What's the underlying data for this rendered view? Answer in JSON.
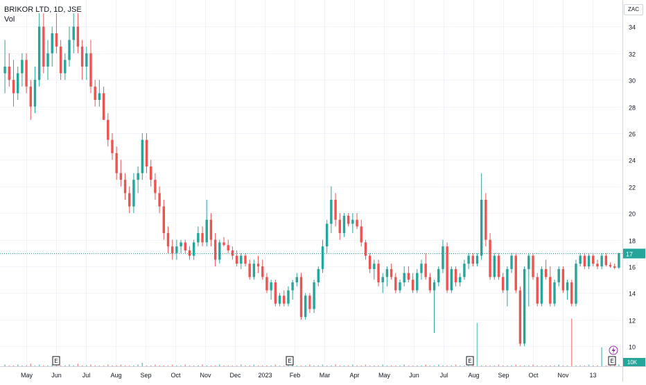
{
  "header": {
    "symbol": "BRIKOR LTD, 1D, JSE",
    "volume_label": "Vol",
    "currency": "ZAC"
  },
  "colors": {
    "up": "#26a69a",
    "down": "#ef5350",
    "grid": "#f0f3fa",
    "text": "#131722",
    "last_price_line": "#26a69a"
  },
  "icons": [
    "earnings-marker-icon",
    "dividend-lightning-icon"
  ],
  "chart_data": {
    "type": "candlestick",
    "ylim": [
      8.5,
      36
    ],
    "y_ticks": [
      10,
      12,
      14,
      16,
      18,
      20,
      22,
      24,
      26,
      28,
      30,
      32,
      34
    ],
    "x_ticks": [
      "May",
      "Jun",
      "Jul",
      "Aug",
      "Sep",
      "Oct",
      "Nov",
      "Dec",
      "2023",
      "Feb",
      "Mar",
      "Apr",
      "May",
      "Jun",
      "Jul",
      "Aug",
      "Sep",
      "Oct",
      "Nov",
      "13"
    ],
    "last_price": 17,
    "volume_axis_label": "10K",
    "earnings_marker_label": "E",
    "earnings_markers_at": [
      4.6,
      1.05,
      14.1,
      0.95,
      19.4
    ],
    "dividend_marker_at": [
      18.95,
      2
    ],
    "candles": [
      [
        30.5,
        33,
        29,
        31
      ],
      [
        31,
        32,
        29.5,
        30
      ],
      [
        30,
        31.5,
        28,
        29
      ],
      [
        29,
        31,
        28.5,
        30.5
      ],
      [
        30.5,
        32,
        29.5,
        31.5
      ],
      [
        31.5,
        32,
        29,
        29.5
      ],
      [
        29.5,
        30,
        27,
        28
      ],
      [
        28,
        31,
        27.5,
        30
      ],
      [
        30,
        35,
        29.5,
        34
      ],
      [
        34,
        35,
        30.5,
        31
      ],
      [
        31,
        33,
        30,
        32
      ],
      [
        32,
        34,
        31,
        33.5
      ],
      [
        33.5,
        35,
        32,
        32.5
      ],
      [
        32.5,
        33,
        30,
        30.5
      ],
      [
        30.5,
        32,
        30,
        31.5
      ],
      [
        31.5,
        34,
        31,
        33
      ],
      [
        33,
        35,
        32,
        34
      ],
      [
        34,
        35,
        32,
        32.5
      ],
      [
        32.5,
        33,
        30,
        31
      ],
      [
        31,
        32.5,
        30,
        32
      ],
      [
        32,
        33,
        29,
        29.5
      ],
      [
        29.5,
        30,
        28,
        28.5
      ],
      [
        28.5,
        30,
        28,
        29
      ],
      [
        29,
        29.5,
        27,
        27
      ],
      [
        27,
        27.5,
        25,
        25.5
      ],
      [
        25.5,
        26,
        24,
        24.5
      ],
      [
        24.5,
        25,
        22.5,
        23
      ],
      [
        23,
        24,
        22,
        22.5
      ],
      [
        22.5,
        23,
        21,
        21.5
      ],
      [
        21.5,
        22,
        20,
        20.5
      ],
      [
        20.5,
        23,
        20,
        22.5
      ],
      [
        22.5,
        23.5,
        21.5,
        23
      ],
      [
        23,
        26,
        22.5,
        25.5
      ],
      [
        25.5,
        26,
        23,
        23.5
      ],
      [
        23.5,
        24,
        22,
        22.5
      ],
      [
        22.5,
        23,
        21,
        21.5
      ],
      [
        21.5,
        22,
        20,
        20.5
      ],
      [
        20.5,
        21,
        18,
        18.5
      ],
      [
        18.5,
        19,
        17,
        17.5
      ],
      [
        17.5,
        18,
        16.5,
        17
      ],
      [
        17,
        18,
        16.5,
        17.5
      ],
      [
        17.5,
        18,
        17,
        17.8
      ],
      [
        17.8,
        18,
        17,
        17.2
      ],
      [
        17.2,
        17.5,
        16.5,
        16.8
      ],
      [
        16.8,
        18,
        16.5,
        17.8
      ],
      [
        17.8,
        19,
        17.5,
        18.5
      ],
      [
        18.5,
        19,
        17.5,
        17.8
      ],
      [
        17.8,
        21,
        17.5,
        19.5
      ],
      [
        19.5,
        20,
        17.5,
        18
      ],
      [
        18,
        18.5,
        16,
        16.5
      ],
      [
        16.5,
        18,
        16.2,
        17.8
      ],
      [
        17.8,
        18.2,
        17.5,
        17.6
      ],
      [
        17.6,
        18,
        17,
        17.2
      ],
      [
        17.2,
        17.5,
        16.5,
        16.8
      ],
      [
        16.8,
        17.2,
        16,
        16.2
      ],
      [
        16.2,
        17,
        15.8,
        16.8
      ],
      [
        16.8,
        17,
        16,
        16.2
      ],
      [
        16.2,
        16.5,
        15,
        15.2
      ],
      [
        15.2,
        16.5,
        15,
        16.2
      ],
      [
        16.2,
        16.8,
        15.5,
        16
      ],
      [
        16,
        16.5,
        15,
        15.2
      ],
      [
        15.2,
        15.5,
        14,
        14.2
      ],
      [
        14.2,
        15,
        13.5,
        14.8
      ],
      [
        14.8,
        15,
        13,
        13.2
      ],
      [
        13.2,
        14,
        13,
        13.8
      ],
      [
        13.8,
        14.2,
        13,
        13.2
      ],
      [
        13.2,
        14.5,
        13,
        14.2
      ],
      [
        14.2,
        15,
        13.5,
        14.8
      ],
      [
        14.8,
        15.5,
        14.5,
        15.2
      ],
      [
        15.2,
        15.5,
        12,
        12.2
      ],
      [
        12.2,
        14,
        12,
        13.8
      ],
      [
        13.8,
        14,
        12.5,
        12.8
      ],
      [
        12.8,
        15,
        12.5,
        14.8
      ],
      [
        14.8,
        16,
        14.5,
        15.8
      ],
      [
        15.8,
        18,
        15.5,
        17.5
      ],
      [
        17.5,
        19.5,
        17,
        19.2
      ],
      [
        19.2,
        22,
        18.5,
        21
      ],
      [
        21,
        21.5,
        19,
        19.5
      ],
      [
        19.5,
        20,
        18,
        18.5
      ],
      [
        18.5,
        20,
        18.2,
        19.8
      ],
      [
        19.8,
        20,
        19,
        19.2
      ],
      [
        19.2,
        20,
        18.5,
        19.5
      ],
      [
        19.5,
        20,
        18.8,
        19
      ],
      [
        19,
        19.5,
        17.5,
        17.8
      ],
      [
        17.8,
        18,
        16.5,
        16.8
      ],
      [
        16.8,
        17,
        15.5,
        15.8
      ],
      [
        15.8,
        16.5,
        15,
        16.2
      ],
      [
        16.2,
        16.5,
        14.5,
        14.8
      ],
      [
        14.8,
        15.5,
        14,
        15.2
      ],
      [
        15.2,
        16,
        14.5,
        15.8
      ],
      [
        15.8,
        16.2,
        15,
        15.2
      ],
      [
        15.2,
        15.5,
        14,
        14.2
      ],
      [
        14.2,
        15,
        14,
        14.8
      ],
      [
        14.8,
        16,
        14.5,
        15.5
      ],
      [
        15.5,
        16,
        14.8,
        15
      ],
      [
        15,
        15.5,
        14,
        14.2
      ],
      [
        14.2,
        15.8,
        14,
        15.5
      ],
      [
        15.5,
        16.5,
        15,
        16.2
      ],
      [
        16.2,
        17,
        15,
        15.2
      ],
      [
        15.2,
        15.5,
        14,
        14.2
      ],
      [
        14.2,
        15,
        11,
        14.8
      ],
      [
        14.8,
        16,
        14.5,
        15.8
      ],
      [
        15.8,
        18,
        15.5,
        17.5
      ],
      [
        17.5,
        17.8,
        14,
        14.2
      ],
      [
        14.2,
        16,
        14,
        15.8
      ],
      [
        15.8,
        16,
        14.5,
        14.8
      ],
      [
        14.8,
        15.5,
        14.5,
        15.2
      ],
      [
        15.2,
        16.5,
        15,
        16.2
      ],
      [
        16.2,
        17,
        15.8,
        16.8
      ],
      [
        16.8,
        17,
        16,
        16.2
      ],
      [
        16.2,
        17,
        16,
        16.8
      ],
      [
        16.8,
        23,
        16.5,
        21
      ],
      [
        21,
        21.5,
        17.5,
        18
      ],
      [
        18,
        18.5,
        15,
        15.2
      ],
      [
        15.2,
        17,
        15,
        16.8
      ],
      [
        16.8,
        17,
        15,
        15.2
      ],
      [
        15.2,
        15.5,
        14,
        14.2
      ],
      [
        14.2,
        16,
        13,
        15.8
      ],
      [
        15.8,
        17,
        15.5,
        16.8
      ],
      [
        16.8,
        17,
        14,
        14.2
      ],
      [
        14.2,
        14.5,
        10,
        10.2
      ],
      [
        10.2,
        16,
        10,
        15.8
      ],
      [
        15.8,
        17,
        13,
        16.8
      ],
      [
        16.8,
        17,
        15,
        15.2
      ],
      [
        15.2,
        15.5,
        13,
        13.2
      ],
      [
        13.2,
        16,
        13,
        15.8
      ],
      [
        15.8,
        16.5,
        15,
        15.2
      ],
      [
        15.2,
        16,
        13,
        13.2
      ],
      [
        13.2,
        15,
        13,
        14.8
      ],
      [
        14.8,
        16,
        14.5,
        15.8
      ],
      [
        15.8,
        16,
        14,
        14.2
      ],
      [
        14.2,
        15,
        13.5,
        14.8
      ],
      [
        14.8,
        15,
        13,
        13.2
      ],
      [
        13.2,
        16.5,
        13,
        16.2
      ],
      [
        16.2,
        17,
        16,
        16.8
      ],
      [
        16.8,
        17,
        15.8,
        16
      ],
      [
        16,
        17,
        15.8,
        16.8
      ],
      [
        16.8,
        17,
        16,
        16.2
      ],
      [
        16.2,
        16.5,
        15.8,
        16
      ],
      [
        16,
        17,
        15.8,
        16.8
      ],
      [
        16.8,
        17,
        16,
        16.1
      ],
      [
        16.1,
        16.3,
        15.9,
        16
      ],
      [
        16,
        16.2,
        15.8,
        15.9
      ],
      [
        15.9,
        17,
        15.8,
        17
      ]
    ],
    "volume": [
      2,
      1,
      1,
      2,
      1,
      1,
      3,
      1,
      2,
      1,
      1,
      2,
      1,
      1,
      1,
      2,
      1,
      3,
      1,
      1,
      2,
      1,
      1,
      1,
      2,
      1,
      1,
      2,
      1,
      1,
      1,
      2,
      4,
      1,
      1,
      2,
      1,
      1,
      1,
      2,
      1,
      1,
      2,
      1,
      1,
      1,
      2,
      1,
      1,
      1,
      2,
      1,
      1,
      1,
      1,
      2,
      1,
      1,
      2,
      1,
      1,
      1,
      1,
      2,
      1,
      1,
      1,
      2,
      1,
      1,
      1,
      2,
      1,
      1,
      2,
      1,
      1,
      2,
      1,
      1,
      1,
      2,
      1,
      1,
      2,
      1,
      1,
      1,
      2,
      1,
      1,
      1,
      1,
      2,
      1,
      1,
      1,
      1,
      2,
      1,
      1,
      2,
      1,
      1,
      1,
      2,
      1,
      1,
      1,
      1,
      50,
      1,
      1,
      1,
      1,
      2,
      1,
      1,
      1,
      2,
      1,
      1,
      1,
      2,
      1,
      1,
      1,
      1,
      1,
      2,
      1,
      1,
      55,
      1,
      1,
      1,
      2,
      1,
      1,
      22,
      1,
      1,
      1,
      2
    ]
  }
}
